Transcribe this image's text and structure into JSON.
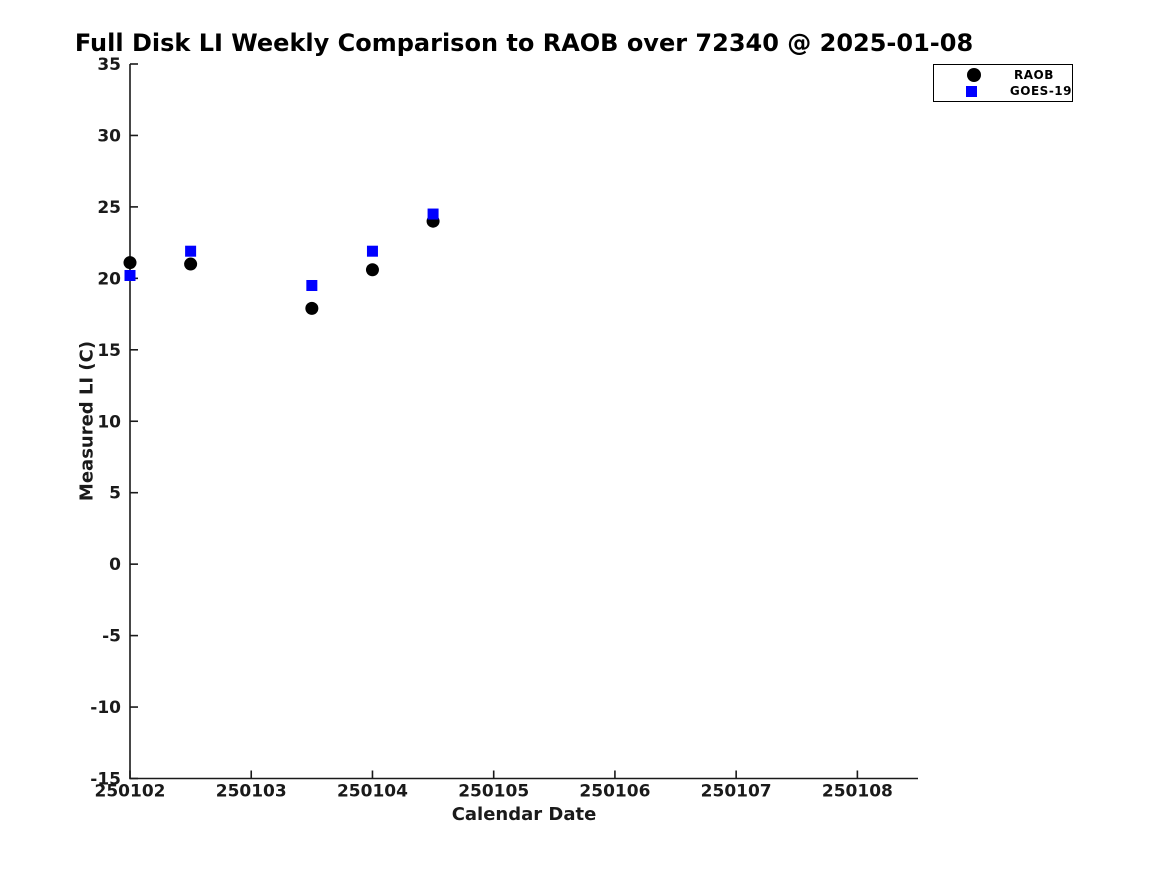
{
  "chart_data": {
    "type": "scatter",
    "title": "Full Disk LI Weekly Comparison to RAOB over 72340 @ 2025-01-08",
    "xlabel": "Calendar Date",
    "ylabel": "Measured LI (C)",
    "xlim": [
      250102,
      250108.5
    ],
    "ylim": [
      -15,
      35
    ],
    "xticks": [
      250102,
      250103,
      250104,
      250105,
      250106,
      250107,
      250108
    ],
    "yticks": [
      35,
      30,
      25,
      20,
      15,
      10,
      5,
      0,
      -5,
      -10,
      -15
    ],
    "grid": false,
    "legend_position": "upper-right",
    "axis_color": "#1a1a1a",
    "series": [
      {
        "name": "RAOB",
        "marker": "circle",
        "color": "#000000",
        "x": [
          250102.0,
          250102.5,
          250103.5,
          250104.0,
          250104.5
        ],
        "y": [
          21.1,
          21.0,
          17.9,
          20.6,
          24.0
        ]
      },
      {
        "name": "GOES-19",
        "marker": "square",
        "color": "#0000ff",
        "x": [
          250102.0,
          250102.5,
          250103.5,
          250104.0,
          250104.5
        ],
        "y": [
          20.2,
          21.9,
          19.5,
          21.9,
          24.5
        ]
      }
    ]
  }
}
